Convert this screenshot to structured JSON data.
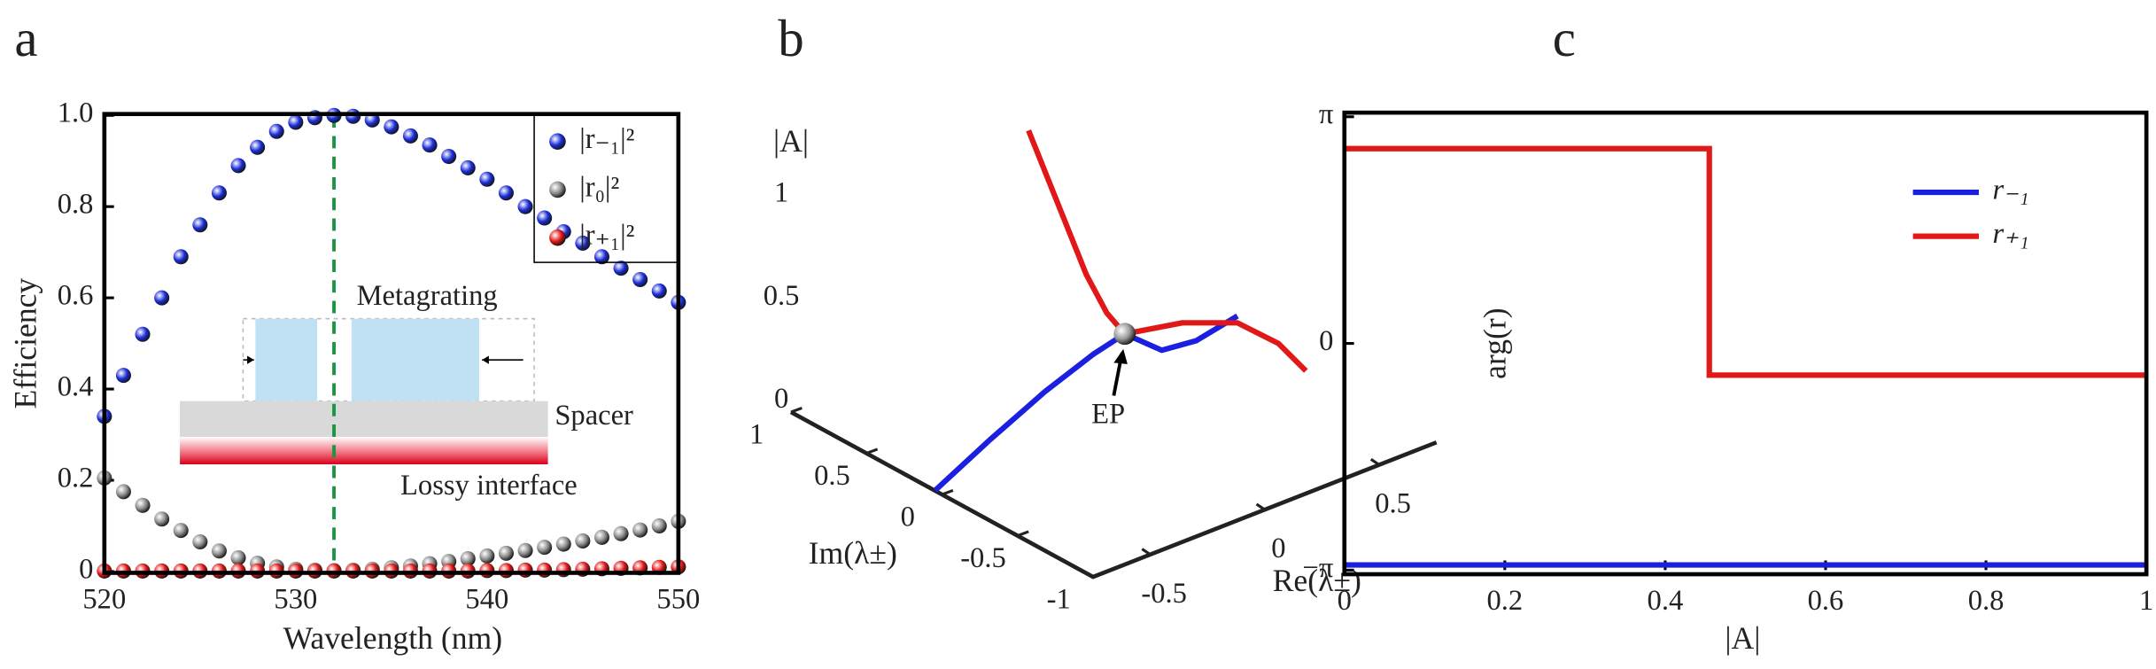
{
  "chart_data": [
    {
      "type": "scatter",
      "panel_label": "a",
      "x_label": "Wavelength (nm)",
      "y_label": "Efficiency",
      "xlim": [
        520,
        550
      ],
      "xticks": [
        520,
        530,
        540,
        550
      ],
      "ylim": [
        0,
        1
      ],
      "yticks": [
        0,
        0.2,
        0.4,
        0.6,
        0.8,
        {
          "value": 1,
          "label": "1.0"
        }
      ],
      "vline": 532,
      "vline_color": "#1a9641",
      "legend": "upper right",
      "annotations": [
        "Metagrating",
        "Spacer",
        "Lossy interface"
      ],
      "x": [
        520,
        521,
        522,
        523,
        524,
        525,
        526,
        527,
        528,
        529,
        530,
        531,
        532,
        533,
        534,
        535,
        536,
        537,
        538,
        539,
        540,
        541,
        542,
        543,
        544,
        545,
        546,
        547,
        548,
        549,
        550
      ],
      "series": [
        {
          "name": "|r₋₁|²",
          "color": "#1c2fd8",
          "values": [
            0.34,
            0.43,
            0.52,
            0.6,
            0.69,
            0.76,
            0.83,
            0.89,
            0.93,
            0.965,
            0.985,
            0.995,
            1.0,
            0.998,
            0.99,
            0.975,
            0.955,
            0.935,
            0.91,
            0.885,
            0.86,
            0.83,
            0.8,
            0.775,
            0.745,
            0.72,
            0.69,
            0.665,
            0.64,
            0.615,
            0.59
          ]
        },
        {
          "name": "|r₀|²",
          "color": "#8c8c8c",
          "values": [
            0.205,
            0.175,
            0.145,
            0.115,
            0.09,
            0.065,
            0.045,
            0.03,
            0.018,
            0.01,
            0.005,
            0.003,
            0.002,
            0.003,
            0.005,
            0.008,
            0.012,
            0.017,
            0.022,
            0.028,
            0.034,
            0.04,
            0.046,
            0.053,
            0.06,
            0.067,
            0.075,
            0.083,
            0.091,
            0.1,
            0.11
          ]
        },
        {
          "name": "|r₊₁|²",
          "color": "#e01818",
          "values": [
            0.001,
            0.001,
            0.001,
            0.001,
            0.001,
            0.001,
            0.001,
            0.001,
            0.001,
            0.001,
            0.001,
            0.001,
            0.001,
            0.001,
            0.001,
            0.001,
            0.001,
            0.001,
            0.001,
            0.001,
            0.002,
            0.002,
            0.003,
            0.003,
            0.004,
            0.005,
            0.006,
            0.007,
            0.008,
            0.009,
            0.01
          ]
        }
      ]
    },
    {
      "type": "line3d",
      "panel_label": "b",
      "re_label": "Re(λ±)",
      "im_label": "Im(λ±)",
      "abs_label": "|A|",
      "relim": [
        -0.75,
        0.75
      ],
      "reticks": [
        -0.5,
        0,
        0.5
      ],
      "imlim": [
        -1,
        1
      ],
      "imticks": [
        -1,
        -0.5,
        0,
        0.5,
        1
      ],
      "abslim": [
        0,
        1
      ],
      "absticks": [
        0,
        0.5,
        1
      ],
      "ep": {
        "label": "EP",
        "re": 0.031,
        "im": -0.026,
        "abs": 0.45,
        "color": "#9a9a9a"
      },
      "series": [
        {
          "color": "#1b1fe0",
          "abs": [
            0,
            0.1,
            0.2,
            0.32,
            0.45,
            0.55,
            0.65,
            0.75
          ],
          "re": [
            -0.748,
            -0.468,
            -0.2,
            -0.02,
            0.031,
            -0.047,
            -0.011,
            0.113
          ],
          "im": [
            0.048,
            0.109,
            0.151,
            0.106,
            -0.026,
            -0.39,
            -0.563,
            -0.648
          ]
        },
        {
          "color": "#e01818",
          "abs": [
            1,
            0.85,
            0.7,
            0.57,
            0.45,
            0.35,
            0.25,
            0.15,
            0.05
          ],
          "re": [
            0.206,
            0.075,
            -0.031,
            -0.033,
            0.031,
            0.325,
            0.561,
            0.665,
            0.703
          ],
          "im": [
            0.876,
            0.477,
            0.134,
            -0.005,
            -0.026,
            0.038,
            0.031,
            -0.083,
            -0.207
          ]
        }
      ]
    },
    {
      "type": "line",
      "panel_label": "c",
      "x_label": "|A|",
      "y_label": "arg(r)",
      "xlim": [
        0,
        1
      ],
      "xticks": [
        0,
        0.2,
        0.4,
        0.6,
        0.8,
        1
      ],
      "ylim": [
        -3.1416,
        3.1416
      ],
      "yticks": [
        {
          "value": 3.1416,
          "label": "π"
        },
        0,
        {
          "value": -3.1416,
          "label": "−π"
        }
      ],
      "legend": "upper right",
      "series": [
        {
          "name": "r₋₁",
          "color": "#1b1fe0",
          "x": [
            0,
            1
          ],
          "values": [
            -3.07,
            -3.07
          ]
        },
        {
          "name": "r₊₁",
          "color": "#e01818",
          "x": [
            0,
            0.455,
            0.455,
            1
          ],
          "values": [
            2.7,
            2.7,
            -0.44,
            -0.44
          ]
        }
      ]
    }
  ]
}
